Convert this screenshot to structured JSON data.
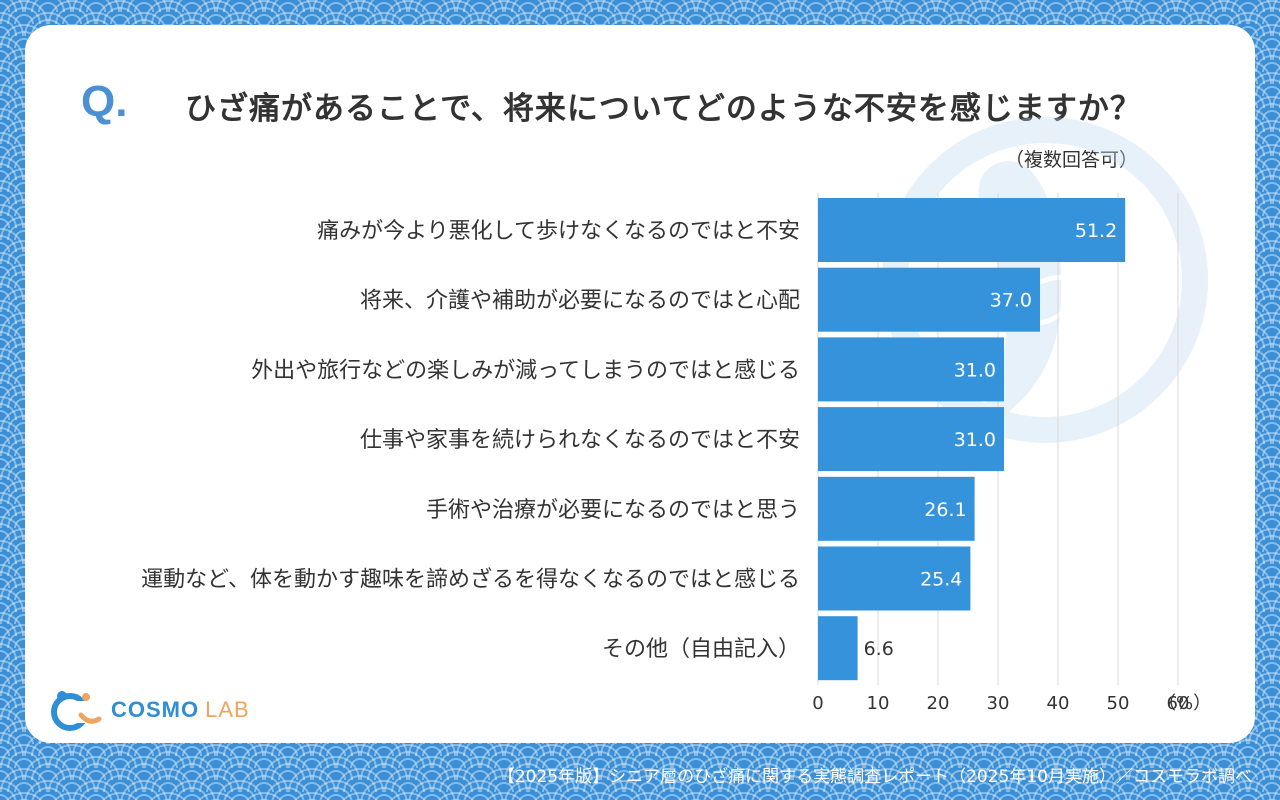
{
  "header": {
    "q_mark": "Q.",
    "question": "ひざ痛があることで、将来についてどのような不安を感じますか？",
    "multiple_answers_note": "（複数回答可）"
  },
  "chart_data": {
    "type": "bar",
    "orientation": "horizontal",
    "title": "ひざ痛があることで、将来についてどのような不安を感じますか？",
    "categories": [
      "痛みが今より悪化して歩けなくなるのではと不安",
      "将来、介護や補助が必要になるのではと心配",
      "外出や旅行などの楽しみが減ってしまうのではと感じる",
      "仕事や家事を続けられなくなるのではと不安",
      "手術や治療が必要になるのではと思う",
      "運動など、体を動かす趣味を諦めざるを得なくなるのではと感じる",
      "その他（自由記入）"
    ],
    "values": [
      51.2,
      37.0,
      31.0,
      31.0,
      26.1,
      25.4,
      6.6
    ],
    "value_labels": [
      "51.2",
      "37.0",
      "31.0",
      "31.0",
      "26.1",
      "25.4",
      "6.6"
    ],
    "x_ticks": [
      0,
      10,
      20,
      30,
      40,
      50,
      60
    ],
    "x_unit_label": "（%）",
    "xlim": [
      0,
      60
    ],
    "grid": true,
    "bar_color": "#3593db",
    "label_color_inside": "#ffffff",
    "label_color_outside": "#333333"
  },
  "logo": {
    "name": "COSMO",
    "suffix": "LAB"
  },
  "footer": {
    "source": "【2025年版】シニア層のひざ痛に関する実態調査レポート（2025年10月実施）／コスモラボ調べ"
  },
  "colors": {
    "background": "#3a8fd6",
    "accent": "#4a90d2",
    "logo_orange": "#f2a35c"
  }
}
